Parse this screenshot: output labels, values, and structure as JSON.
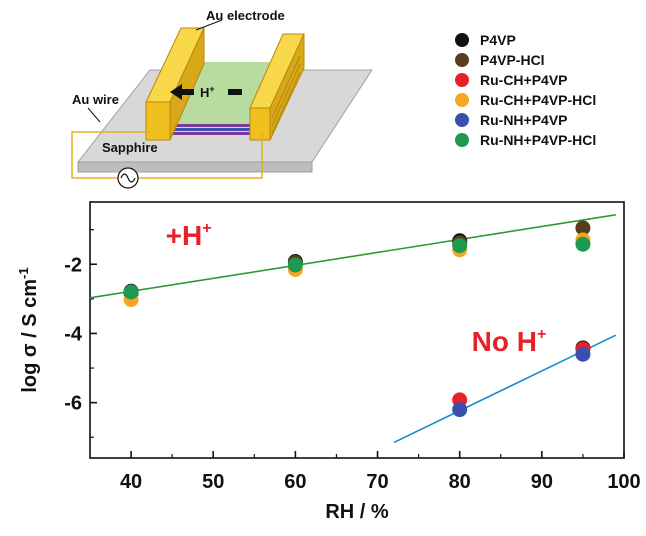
{
  "schematic": {
    "electrode_label": "Au electrode",
    "proton_label": "H",
    "proton_superscript": "+",
    "wire_label": "Au wire",
    "substrate_label": "Sapphire"
  },
  "colors": {
    "P4VP": "#111111",
    "P4VP-HCl": "#5a3d1c",
    "Ru-CH+P4VP": "#e8202a",
    "Ru-CH+P4VP-HCl": "#f5a623",
    "Ru-NH+P4VP": "#3a4fb0",
    "Ru-NH+P4VP-HCl": "#1e9a50",
    "fit_upper": "#2e9a2e",
    "fit_lower": "#1a8ad0",
    "annotation": "#e8202a",
    "electrode": "#f0c020",
    "film": "#b8dca0",
    "substrate": "#d8d8d8",
    "wire": "#e8b020"
  },
  "chart_data": {
    "type": "scatter",
    "xlabel": "RH / %",
    "ylabel": "log σ / S cm",
    "ylabel_superscript": "-1",
    "xlim": [
      35,
      100
    ],
    "ylim": [
      -7.6,
      -0.2
    ],
    "xticks": [
      40,
      50,
      60,
      70,
      80,
      90,
      100
    ],
    "yticks": [
      -2,
      -4,
      -6
    ],
    "legend_position": "top-right",
    "series": [
      {
        "name": "P4VP",
        "color_key": "P4VP",
        "points": [
          [
            40,
            -2.78
          ],
          [
            60,
            -1.92
          ],
          [
            80,
            -1.32
          ],
          [
            95,
            -4.42
          ]
        ]
      },
      {
        "name": "P4VP-HCl",
        "color_key": "P4VP-HCl",
        "points": [
          [
            40,
            -2.85
          ],
          [
            60,
            -1.95
          ],
          [
            80,
            -1.38
          ],
          [
            95,
            -0.95
          ]
        ]
      },
      {
        "name": "Ru-CH+P4VP",
        "color_key": "Ru-CH+P4VP",
        "points": [
          [
            80,
            -5.92
          ],
          [
            95,
            -4.45
          ]
        ]
      },
      {
        "name": "Ru-CH+P4VP-HCl",
        "color_key": "Ru-CH+P4VP-HCl",
        "points": [
          [
            40,
            -3.02
          ],
          [
            60,
            -2.15
          ],
          [
            80,
            -1.58
          ],
          [
            95,
            -1.3
          ]
        ]
      },
      {
        "name": "Ru-NH+P4VP",
        "color_key": "Ru-NH+P4VP",
        "points": [
          [
            80,
            -6.2
          ],
          [
            95,
            -4.6
          ]
        ]
      },
      {
        "name": "Ru-NH+P4VP-HCl",
        "color_key": "Ru-NH+P4VP-HCl",
        "points": [
          [
            40,
            -2.8
          ],
          [
            60,
            -2.02
          ],
          [
            80,
            -1.46
          ],
          [
            95,
            -1.42
          ]
        ]
      }
    ],
    "fit_lines": [
      {
        "color_key": "fit_upper",
        "from": [
          35,
          -2.97
        ],
        "to": [
          99,
          -0.57
        ]
      },
      {
        "color_key": "fit_lower",
        "from": [
          72,
          -7.15
        ],
        "to": [
          99,
          -4.05
        ]
      }
    ],
    "annotations": [
      {
        "text": "+H",
        "superscript": "+",
        "x": 47,
        "y": -1.45
      },
      {
        "text": "No H",
        "superscript": "+",
        "x": 86,
        "y": -4.5
      }
    ]
  }
}
